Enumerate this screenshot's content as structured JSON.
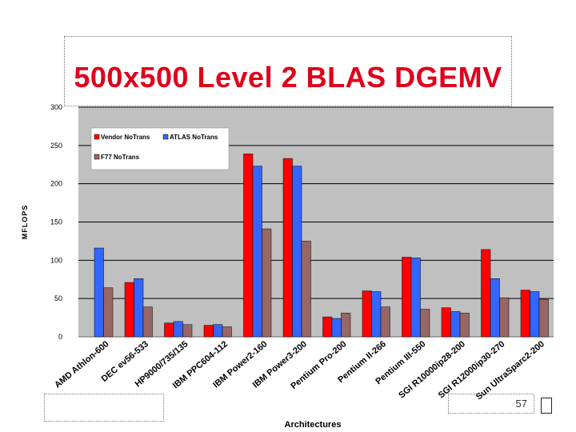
{
  "slide": {
    "title": "500x500 Level 2 BLAS DGEMV",
    "page_number": "57"
  },
  "chart_data": {
    "type": "bar",
    "title": "",
    "xlabel": "Architectures",
    "ylabel": "MFLOPS",
    "ylim": [
      0,
      300
    ],
    "yticks": [
      0,
      50,
      100,
      150,
      200,
      250,
      300
    ],
    "grid": true,
    "legend_position": "top-left",
    "categories": [
      "AMD Athlon-600",
      "DEC ev56-533",
      "HP9000/735/135",
      "IBM PPC604-112",
      "IBM Power2-160",
      "IBM Power3-200",
      "Pentium Pro-200",
      "Pentium II-266",
      "Pentium III-550",
      "SGI R10000ip28-200",
      "SGI R12000ip30-270",
      "Sun UltraSparc2-200"
    ],
    "series": [
      {
        "name": "Vendor NoTrans",
        "color": "#ff0000",
        "values": [
          0,
          71,
          18,
          15,
          239,
          233,
          26,
          60,
          104,
          38,
          114,
          61
        ]
      },
      {
        "name": "ATLAS NoTrans",
        "color": "#3366ff",
        "values": [
          116,
          76,
          20,
          16,
          223,
          223,
          24,
          59,
          103,
          33,
          76,
          59
        ]
      },
      {
        "name": "F77 NoTrans",
        "color": "#996666",
        "values": [
          64,
          39,
          16,
          13,
          141,
          125,
          31,
          39,
          36,
          31,
          51,
          49
        ]
      }
    ]
  }
}
